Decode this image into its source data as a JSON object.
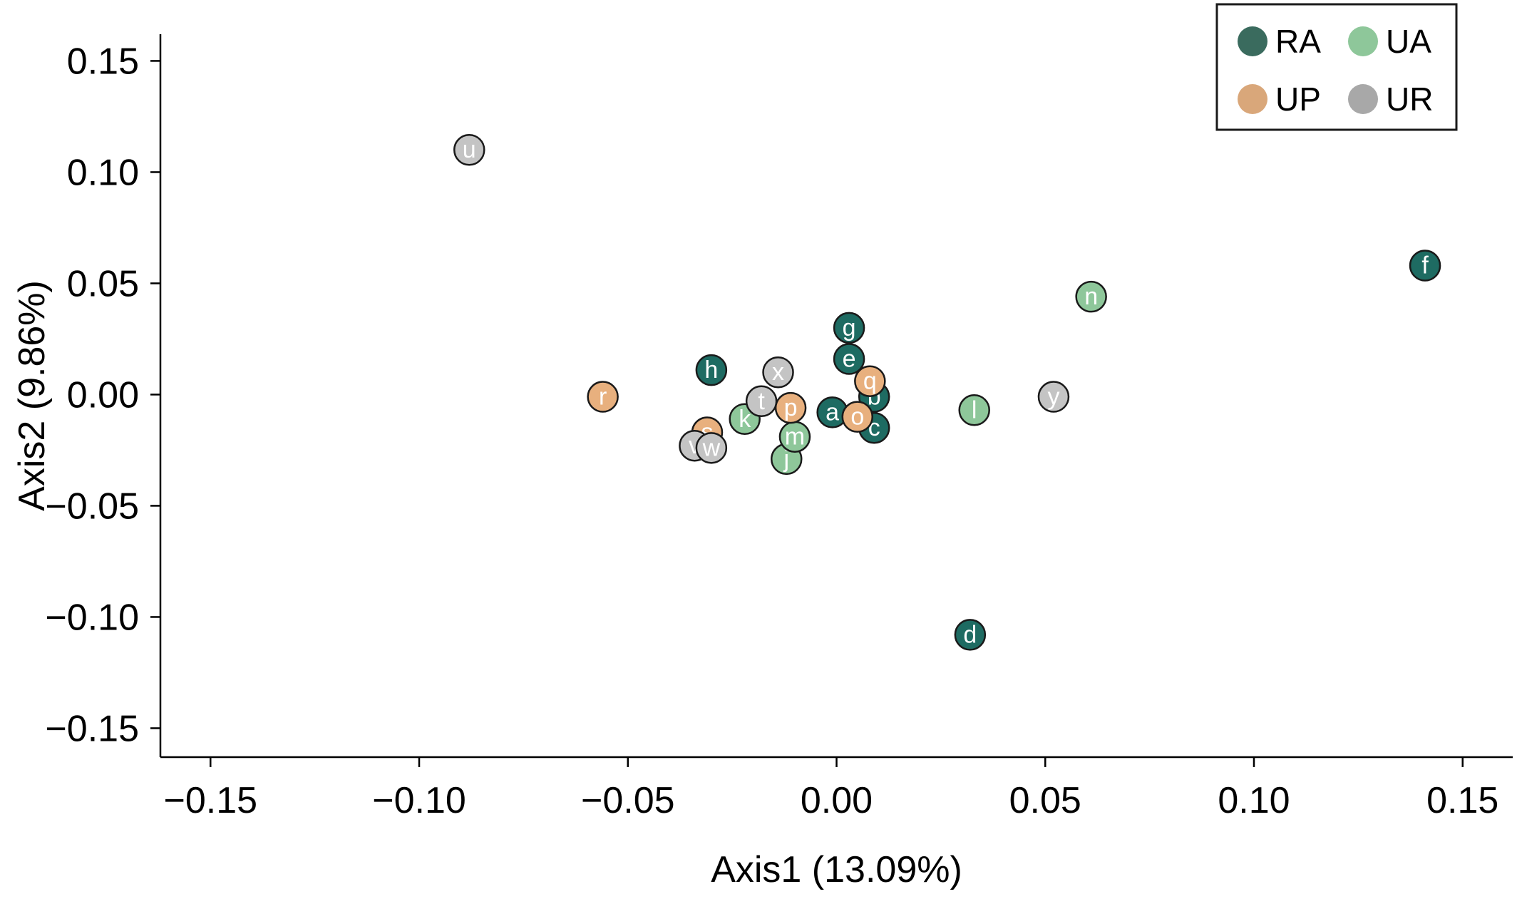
{
  "chart_data": {
    "type": "scatter",
    "title": "",
    "xlabel": "Axis1 (13.09%)",
    "ylabel": "Axis2 (9.86%)",
    "xlim": [
      -0.162,
      0.162
    ],
    "ylim": [
      -0.163,
      0.162
    ],
    "xticks": [
      -0.15,
      -0.1,
      -0.05,
      0.0,
      0.05,
      0.1,
      0.15
    ],
    "yticks": [
      -0.15,
      -0.1,
      -0.05,
      0.0,
      0.05,
      0.1,
      0.15
    ],
    "xtick_labels": [
      "−0.15",
      "−0.10",
      "−0.05",
      "0.00",
      "0.05",
      "0.10",
      "0.15"
    ],
    "ytick_labels": [
      "−0.15",
      "−0.10",
      "−0.05",
      "0.00",
      "0.05",
      "0.10",
      "0.15"
    ],
    "grid": false,
    "legend_position": "top-right",
    "series": [
      {
        "name": "RA",
        "color": "#1e6b62",
        "points": [
          {
            "label": "a",
            "x": -0.001,
            "y": -0.008
          },
          {
            "label": "b",
            "x": 0.009,
            "y": -0.001
          },
          {
            "label": "c",
            "x": 0.009,
            "y": -0.015
          },
          {
            "label": "d",
            "x": 0.032,
            "y": -0.108
          },
          {
            "label": "e",
            "x": 0.003,
            "y": 0.016
          },
          {
            "label": "f",
            "x": 0.141,
            "y": 0.058
          },
          {
            "label": "g",
            "x": 0.003,
            "y": 0.03
          },
          {
            "label": "h",
            "x": -0.03,
            "y": 0.011
          }
        ]
      },
      {
        "name": "UA",
        "color": "#8ec79a",
        "points": [
          {
            "label": "j",
            "x": -0.012,
            "y": -0.029
          },
          {
            "label": "k",
            "x": -0.022,
            "y": -0.011
          },
          {
            "label": "l",
            "x": 0.033,
            "y": -0.007
          },
          {
            "label": "m",
            "x": -0.01,
            "y": -0.019
          },
          {
            "label": "n",
            "x": 0.061,
            "y": 0.044
          }
        ]
      },
      {
        "name": "UP",
        "color": "#e8b07e",
        "points": [
          {
            "label": "o",
            "x": 0.005,
            "y": -0.01
          },
          {
            "label": "p",
            "x": -0.011,
            "y": -0.006
          },
          {
            "label": "q",
            "x": 0.008,
            "y": 0.006
          },
          {
            "label": "r",
            "x": -0.056,
            "y": -0.001
          },
          {
            "label": "s",
            "x": -0.031,
            "y": -0.017
          }
        ]
      },
      {
        "name": "UR",
        "color": "#c4c4c4",
        "points": [
          {
            "label": "t",
            "x": -0.018,
            "y": -0.003
          },
          {
            "label": "u",
            "x": -0.088,
            "y": 0.11
          },
          {
            "label": "v",
            "x": -0.034,
            "y": -0.023
          },
          {
            "label": "w",
            "x": -0.03,
            "y": -0.024
          },
          {
            "label": "x",
            "x": -0.014,
            "y": 0.01
          },
          {
            "label": "y",
            "x": 0.052,
            "y": -0.001
          }
        ]
      }
    ],
    "legend": [
      {
        "name": "RA",
        "color": "#3a6b5e"
      },
      {
        "name": "UA",
        "color": "#8ec79a"
      },
      {
        "name": "UP",
        "color": "#d9a77a"
      },
      {
        "name": "UR",
        "color": "#a8a8a8"
      }
    ]
  }
}
